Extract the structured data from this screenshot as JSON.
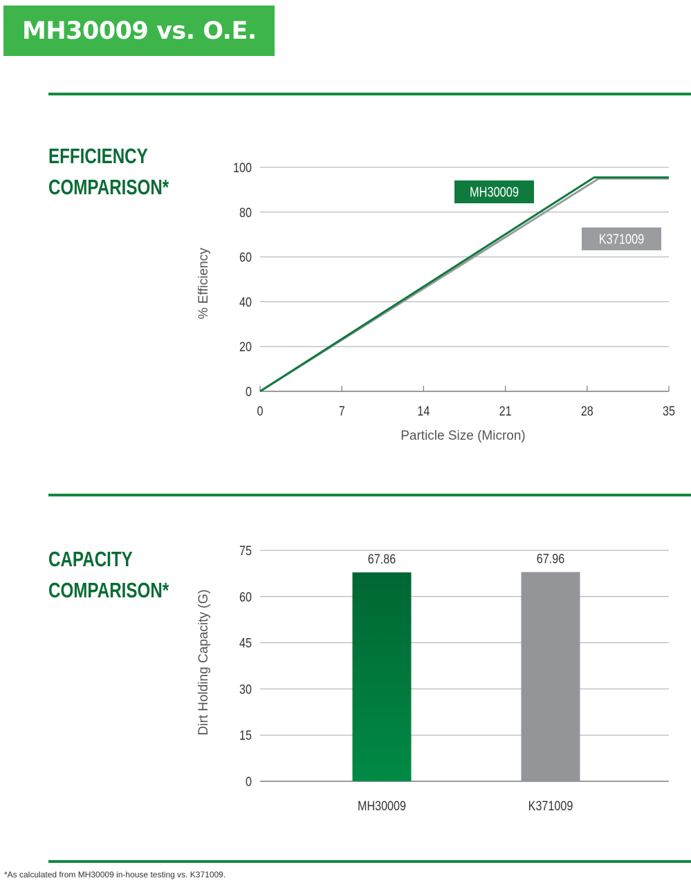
{
  "header": {
    "title": "MH30009 vs. O.E."
  },
  "sections": [
    {
      "title_line1": "EFFICIENCY",
      "title_line2": "COMPARISON*"
    },
    {
      "title_line1": "CAPACITY",
      "title_line2": "COMPARISON*"
    }
  ],
  "colors": {
    "brand_green": "#3db54a",
    "series_green": "#0f7a3e",
    "series_gray": "#9a9c9f",
    "rule_green": "#108a3f"
  },
  "chart_data": [
    {
      "type": "line",
      "xlabel": "Particle Size (Micron)",
      "ylabel": "% Efficiency",
      "xlim": [
        0,
        35
      ],
      "ylim": [
        0,
        100
      ],
      "xticks": [
        0,
        7,
        14,
        21,
        28,
        35
      ],
      "yticks": [
        0,
        20,
        40,
        60,
        80,
        100
      ],
      "grid": true,
      "series": [
        {
          "name": "MH30009",
          "color": "#0f7a3e",
          "x": [
            0,
            28.6,
            35
          ],
          "y": [
            0,
            95.5,
            95.5
          ]
        },
        {
          "name": "K371009",
          "color": "#9a9c9f",
          "x": [
            0,
            29,
            35
          ],
          "y": [
            0,
            95,
            95
          ]
        }
      ]
    },
    {
      "type": "bar",
      "ylabel": "Dirt Holding Capacity (G)",
      "ylim": [
        0,
        75
      ],
      "yticks": [
        0,
        15,
        30,
        45,
        60,
        75
      ],
      "grid": true,
      "categories": [
        "MH30009",
        "K371009"
      ],
      "values": [
        67.86,
        67.96
      ],
      "value_labels": [
        "67.86",
        "67.96"
      ],
      "colors": [
        "#0f7a3e",
        "#939598"
      ]
    }
  ],
  "footnote": "*As calculated from MH30009 in-house testing vs. K371009."
}
